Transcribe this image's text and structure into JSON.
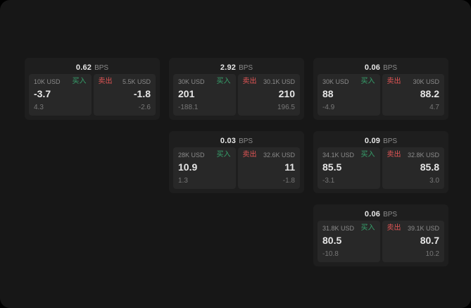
{
  "theme": {
    "bg_page": "#171717",
    "card": "#1e1e1e",
    "panel": "#282828",
    "green": "#36a06b",
    "red": "#e25555",
    "text": "#e6e6e6",
    "muted": "#8b8b8b",
    "submuted": "#777777"
  },
  "cards": [
    {
      "bps_value": "0.62",
      "bps_label": "BPS",
      "buy": {
        "amount": "10K USD",
        "label": "买入",
        "value": "-3.7",
        "sub": "4.3"
      },
      "sell": {
        "amount": "5.5K USD",
        "label": "卖出",
        "value": "-1.8",
        "sub": "-2.6"
      }
    },
    {
      "bps_value": "2.92",
      "bps_label": "BPS",
      "buy": {
        "amount": "30K USD",
        "label": "买入",
        "value": "201",
        "sub": "-188.1"
      },
      "sell": {
        "amount": "30.1K USD",
        "label": "卖出",
        "value": "210",
        "sub": "196.5"
      }
    },
    {
      "bps_value": "0.06",
      "bps_label": "BPS",
      "buy": {
        "amount": "30K USD",
        "label": "买入",
        "value": "88",
        "sub": "-4.9"
      },
      "sell": {
        "amount": "30K USD",
        "label": "卖出",
        "value": "88.2",
        "sub": "4.7"
      }
    },
    {
      "bps_value": "0.03",
      "bps_label": "BPS",
      "buy": {
        "amount": "28K USD",
        "label": "买入",
        "value": "10.9",
        "sub": "1.3"
      },
      "sell": {
        "amount": "32.6K USD",
        "label": "卖出",
        "value": "11",
        "sub": "-1.8"
      }
    },
    {
      "bps_value": "0.09",
      "bps_label": "BPS",
      "buy": {
        "amount": "34.1K USD",
        "label": "买入",
        "value": "85.5",
        "sub": "-3.1"
      },
      "sell": {
        "amount": "32.8K USD",
        "label": "卖出",
        "value": "85.8",
        "sub": "3.0"
      }
    },
    {
      "bps_value": "0.06",
      "bps_label": "BPS",
      "buy": {
        "amount": "31.8K USD",
        "label": "买入",
        "value": "80.5",
        "sub": "-10.8"
      },
      "sell": {
        "amount": "39.1K USD",
        "label": "卖出",
        "value": "80.7",
        "sub": "10.2"
      }
    }
  ]
}
